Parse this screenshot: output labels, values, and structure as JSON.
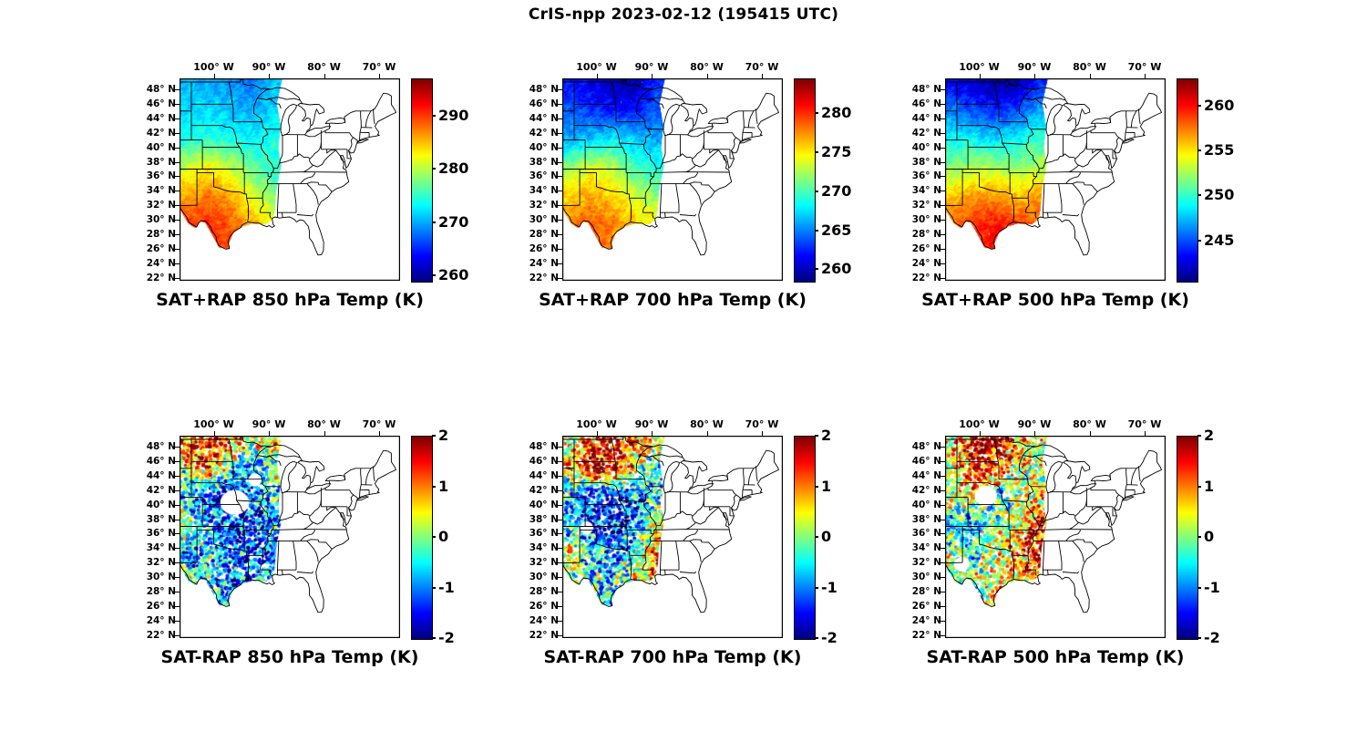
{
  "title": "CrIS-npp 2023-02-12 (195415 UTC)",
  "axes": {
    "lon_ticks": [
      {
        "label": "100° W",
        "value": -100
      },
      {
        "label": "90° W",
        "value": -90
      },
      {
        "label": "80° W",
        "value": -80
      },
      {
        "label": "70° W",
        "value": -70
      }
    ],
    "lat_ticks": [
      {
        "label": "48° N",
        "value": 48
      },
      {
        "label": "46° N",
        "value": 46
      },
      {
        "label": "44° N",
        "value": 44
      },
      {
        "label": "42° N",
        "value": 42
      },
      {
        "label": "40° N",
        "value": 40
      },
      {
        "label": "38° N",
        "value": 38
      },
      {
        "label": "36° N",
        "value": 36
      },
      {
        "label": "34° N",
        "value": 34
      },
      {
        "label": "32° N",
        "value": 32
      },
      {
        "label": "30° N",
        "value": 30
      },
      {
        "label": "28° N",
        "value": 28
      },
      {
        "label": "26° N",
        "value": 26
      },
      {
        "label": "24° N",
        "value": 24
      },
      {
        "label": "22° N",
        "value": 22
      }
    ]
  },
  "coverage_region": [
    [
      -106.2,
      49.5
    ],
    [
      -96,
      49.5
    ],
    [
      -87.6,
      49.4
    ],
    [
      -88.6,
      46
    ],
    [
      -87.9,
      43
    ],
    [
      -88.3,
      40
    ],
    [
      -87.8,
      37.5
    ],
    [
      -88.7,
      34
    ],
    [
      -88.9,
      31.5
    ],
    [
      -89.3,
      30.1
    ],
    [
      -90.5,
      29.4
    ],
    [
      -93,
      29.5
    ],
    [
      -94.8,
      29.1
    ],
    [
      -96.5,
      28.2
    ],
    [
      -97.3,
      26.7
    ],
    [
      -97.1,
      26
    ],
    [
      -99,
      26.2
    ],
    [
      -100.5,
      28.3
    ],
    [
      -101.5,
      29.6
    ],
    [
      -102.5,
      29.8
    ],
    [
      -103.3,
      28.9
    ],
    [
      -104.6,
      29.5
    ],
    [
      -105.7,
      30.9
    ],
    [
      -106.2,
      31.7
    ]
  ],
  "chart_data": [
    {
      "type": "scatter",
      "title": "SAT+RAP 850 hPa Temp (K)",
      "colorbar": {
        "min": 259,
        "max": 297,
        "ticks": [
          290,
          280,
          270,
          260
        ]
      },
      "field": {
        "grid_lons": [
          -105,
          -101,
          -97,
          -93,
          -89
        ],
        "grid_lats": [
          49,
          45,
          41,
          37,
          33,
          29
        ],
        "values": [
          [
            271,
            270,
            269,
            268,
            271
          ],
          [
            272,
            272,
            271,
            270,
            272
          ],
          [
            274,
            275,
            274,
            273,
            274
          ],
          [
            281,
            283,
            281,
            277,
            275
          ],
          [
            286,
            288,
            286,
            282,
            278
          ],
          [
            290,
            291,
            289,
            286,
            283
          ]
        ]
      },
      "gaps": []
    },
    {
      "type": "scatter",
      "title": "SAT+RAP 700 hPa Temp (K)",
      "colorbar": {
        "min": 258.5,
        "max": 284.5,
        "ticks": [
          280,
          275,
          270,
          265,
          260
        ]
      },
      "field": {
        "grid_lons": [
          -105,
          -101,
          -97,
          -93,
          -89
        ],
        "grid_lats": [
          49,
          45,
          41,
          37,
          33,
          29
        ],
        "values": [
          [
            262,
            261,
            260,
            259,
            263
          ],
          [
            264,
            263,
            262,
            262,
            264
          ],
          [
            266,
            267,
            268,
            267,
            266
          ],
          [
            272,
            274,
            273,
            270,
            269
          ],
          [
            276,
            277,
            276,
            274,
            272
          ],
          [
            278,
            279,
            278,
            276,
            275
          ]
        ]
      },
      "gaps": []
    },
    {
      "type": "scatter",
      "title": "SAT+RAP 500 hPa Temp (K)",
      "colorbar": {
        "min": 240.5,
        "max": 263,
        "ticks": [
          260,
          255,
          250,
          245
        ]
      },
      "field": {
        "grid_lons": [
          -105,
          -101,
          -97,
          -93,
          -89
        ],
        "grid_lats": [
          49,
          45,
          41,
          37,
          33,
          29
        ],
        "values": [
          [
            243,
            242,
            241,
            241,
            244
          ],
          [
            246,
            245,
            244,
            245,
            247
          ],
          [
            249,
            249,
            248,
            249,
            250
          ],
          [
            252,
            253,
            253,
            252,
            253
          ],
          [
            256,
            257,
            257,
            256,
            257
          ],
          [
            258,
            259,
            260,
            259,
            258
          ]
        ]
      },
      "gaps": []
    },
    {
      "type": "scatter",
      "title": "SAT-RAP 850 hPa Temp (K)",
      "colorbar": {
        "min": -2,
        "max": 2,
        "ticks": [
          2,
          1,
          0,
          -1,
          -2
        ]
      },
      "field": {
        "grid_lons": [
          -105,
          -101,
          -97,
          -93,
          -89
        ],
        "grid_lats": [
          49,
          45,
          41,
          37,
          33,
          29
        ],
        "values": [
          [
            1.2,
            1.6,
            1.0,
            0.3,
            0.6
          ],
          [
            0.3,
            1.2,
            -0.2,
            -1.2,
            0.2
          ],
          [
            -0.8,
            -1.6,
            -1.8,
            -1.2,
            -0.6
          ],
          [
            0.3,
            -0.6,
            -1.4,
            -1.6,
            -0.8
          ],
          [
            -1.2,
            -0.4,
            -1.0,
            -1.4,
            -1.0
          ],
          [
            0.2,
            -0.6,
            -1.2,
            -0.9,
            -0.6
          ]
        ]
      },
      "gaps": [
        [
          -96.2,
          40.3,
          2.6,
          1.7
        ],
        [
          -92.5,
          43.4,
          1.2,
          0.9
        ]
      ]
    },
    {
      "type": "scatter",
      "title": "SAT-RAP 700 hPa Temp (K)",
      "colorbar": {
        "min": -2,
        "max": 2,
        "ticks": [
          2,
          1,
          0,
          -1,
          -2
        ]
      },
      "field": {
        "grid_lons": [
          -105,
          -101,
          -97,
          -93,
          -89
        ],
        "grid_lats": [
          49,
          45,
          41,
          37,
          33,
          29
        ],
        "values": [
          [
            0.2,
            1.0,
            1.6,
            1.0,
            0.4
          ],
          [
            0.8,
            2.0,
            1.8,
            0.6,
            -0.4
          ],
          [
            -0.8,
            -1.6,
            -1.8,
            -1.2,
            -0.6
          ],
          [
            -0.4,
            -1.2,
            -1.6,
            -1.0,
            0.4
          ],
          [
            0.4,
            -0.6,
            -1.0,
            -0.4,
            1.2
          ],
          [
            0.2,
            -0.3,
            -0.6,
            0.4,
            0.8
          ]
        ]
      },
      "gaps": [
        [
          -101.8,
          36.8,
          1.2,
          0.9
        ]
      ]
    },
    {
      "type": "scatter",
      "title": "SAT-RAP 500 hPa Temp (K)",
      "colorbar": {
        "min": -2,
        "max": 2,
        "ticks": [
          2,
          1,
          0,
          -1,
          -2
        ]
      },
      "field": {
        "grid_lons": [
          -105,
          -101,
          -97,
          -93,
          -89
        ],
        "grid_lats": [
          49,
          45,
          41,
          37,
          33,
          29
        ],
        "values": [
          [
            0.6,
            1.6,
            2.0,
            1.0,
            0.4
          ],
          [
            0.4,
            1.8,
            1.4,
            0.4,
            0.2
          ],
          [
            0.2,
            0.4,
            -0.4,
            0.2,
            0.6
          ],
          [
            -0.6,
            -0.9,
            0.0,
            0.4,
            1.6
          ],
          [
            0.2,
            -0.4,
            0.3,
            0.9,
            1.6
          ],
          [
            0.1,
            0.2,
            0.4,
            0.7,
            1.0
          ]
        ]
      },
      "gaps": [
        [
          -98.8,
          41.2,
          2.0,
          1.4
        ],
        [
          -103.2,
          31.8,
          1.4,
          1.0
        ]
      ]
    }
  ]
}
